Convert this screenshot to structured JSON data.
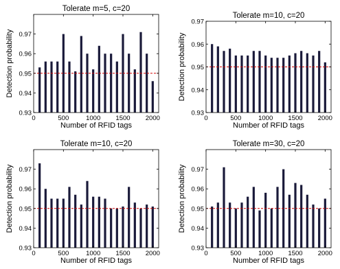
{
  "chart_data": [
    {
      "type": "bar",
      "title": "Tolerate m=5, c=20",
      "xlabel": "Number of RFID tags",
      "ylabel": "Detection probability",
      "xlim": [
        0,
        2100
      ],
      "ylim": [
        0.93,
        0.98
      ],
      "x_ticks": [
        0,
        500,
        1000,
        1500,
        2000
      ],
      "y_ticks": [
        0.93,
        0.94,
        0.95,
        0.96,
        0.97
      ],
      "y_tick_labels": [
        "0.93",
        "0.94",
        "0.95",
        "0.96",
        "0.97"
      ],
      "reference_line": 0.95,
      "x": [
        100,
        200,
        300,
        400,
        500,
        600,
        700,
        800,
        900,
        1000,
        1100,
        1200,
        1300,
        1400,
        1500,
        1600,
        1700,
        1800,
        1900,
        2000
      ],
      "values": [
        0.953,
        0.956,
        0.956,
        0.956,
        0.97,
        0.956,
        0.951,
        0.969,
        0.96,
        0.952,
        0.964,
        0.96,
        0.96,
        0.956,
        0.97,
        0.96,
        0.952,
        0.971,
        0.96,
        0.946
      ]
    },
    {
      "type": "bar",
      "title": "Tolerate m=10, c=20",
      "xlabel": "Number of RFID tags",
      "ylabel": "Detection probability",
      "xlim": [
        0,
        2100
      ],
      "ylim": [
        0.93,
        0.97
      ],
      "x_ticks": [
        0,
        500,
        1000,
        1500,
        2000
      ],
      "y_ticks": [
        0.93,
        0.94,
        0.95,
        0.96,
        0.97
      ],
      "y_tick_labels": [
        "0.93",
        "0.94",
        "0.95",
        "0.96",
        "0.97"
      ],
      "reference_line": 0.95,
      "x": [
        100,
        200,
        300,
        400,
        500,
        600,
        700,
        800,
        900,
        1000,
        1100,
        1200,
        1300,
        1400,
        1500,
        1600,
        1700,
        1800,
        1900,
        2000
      ],
      "values": [
        0.96,
        0.959,
        0.957,
        0.958,
        0.955,
        0.955,
        0.955,
        0.957,
        0.957,
        0.955,
        0.954,
        0.954,
        0.954,
        0.955,
        0.956,
        0.957,
        0.956,
        0.955,
        0.957,
        0.952
      ]
    },
    {
      "type": "bar",
      "title": "Tolerate m=10, c=20",
      "xlabel": "Number of RFID tags",
      "ylabel": "Detection probability",
      "xlim": [
        0,
        2100
      ],
      "ylim": [
        0.93,
        0.98
      ],
      "x_ticks": [
        0,
        500,
        1000,
        1500,
        2000
      ],
      "y_ticks": [
        0.93,
        0.94,
        0.95,
        0.96,
        0.97
      ],
      "y_tick_labels": [
        "0.93",
        "0.94",
        "0.95",
        "0.96",
        "0.97"
      ],
      "reference_line": 0.95,
      "x": [
        100,
        200,
        300,
        400,
        500,
        600,
        700,
        800,
        900,
        1000,
        1100,
        1200,
        1300,
        1400,
        1500,
        1600,
        1700,
        1800,
        1900,
        2000
      ],
      "values": [
        0.973,
        0.96,
        0.955,
        0.955,
        0.955,
        0.961,
        0.957,
        0.952,
        0.964,
        0.956,
        0.956,
        0.955,
        0.95,
        0.95,
        0.951,
        0.961,
        0.953,
        0.95,
        0.952,
        0.951
      ]
    },
    {
      "type": "bar",
      "title": "Tolerate m=30, c=20",
      "xlabel": "Number of RFID tags",
      "ylabel": "Detection probability",
      "xlim": [
        0,
        2100
      ],
      "ylim": [
        0.93,
        0.98
      ],
      "x_ticks": [
        0,
        500,
        1000,
        1500,
        2000
      ],
      "y_ticks": [
        0.93,
        0.94,
        0.95,
        0.96,
        0.97
      ],
      "y_tick_labels": [
        "0.93",
        "0.94",
        "0.95",
        "0.96",
        "0.97"
      ],
      "reference_line": 0.95,
      "x": [
        100,
        200,
        300,
        400,
        500,
        600,
        700,
        800,
        900,
        1000,
        1100,
        1200,
        1300,
        1400,
        1500,
        1600,
        1700,
        1800,
        1900,
        2000
      ],
      "values": [
        0.951,
        0.953,
        0.971,
        0.953,
        0.95,
        0.953,
        0.956,
        0.961,
        0.949,
        0.958,
        0.95,
        0.961,
        0.97,
        0.957,
        0.963,
        0.962,
        0.957,
        0.952,
        0.95,
        0.955
      ]
    }
  ],
  "colors": {
    "bar": "#1a1a3a",
    "reference": "#d40000"
  }
}
